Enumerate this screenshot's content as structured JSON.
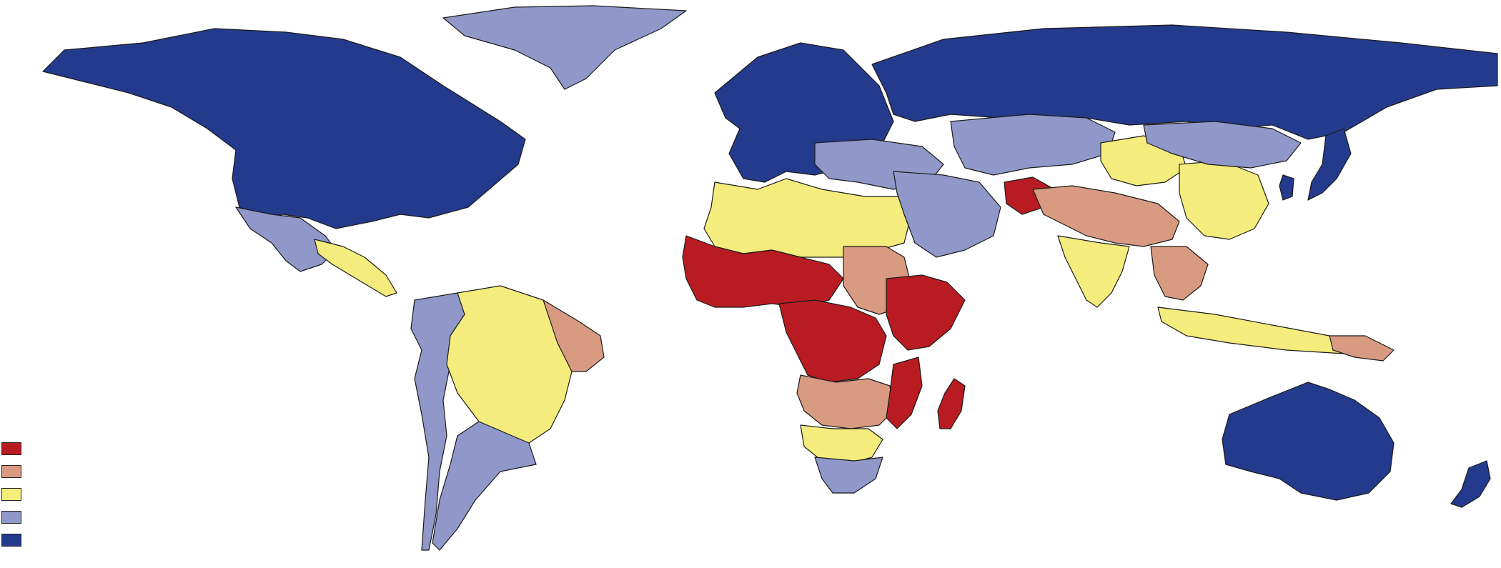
{
  "legend": {
    "classes": [
      {
        "key": "class-1",
        "color": "#b81c22",
        "label": ""
      },
      {
        "key": "class-2",
        "color": "#d99a82",
        "label": ""
      },
      {
        "key": "class-3",
        "color": "#f4ec7c",
        "label": ""
      },
      {
        "key": "class-4",
        "color": "#8f98c9",
        "label": ""
      },
      {
        "key": "class-5",
        "color": "#243a8c",
        "label": ""
      }
    ]
  },
  "colors": {
    "background": "#ffffff",
    "border": "#1a1a1a"
  },
  "regions": [
    {
      "name": "north-america",
      "class": 5
    },
    {
      "name": "greenland",
      "class": 4
    },
    {
      "name": "mexico",
      "class": 4
    },
    {
      "name": "central-america",
      "class": 3
    },
    {
      "name": "andean-south-america",
      "class": 4
    },
    {
      "name": "brazil",
      "class": 3
    },
    {
      "name": "northeast-brazil",
      "class": 2
    },
    {
      "name": "southern-cone",
      "class": 4
    },
    {
      "name": "europe",
      "class": 5
    },
    {
      "name": "russia",
      "class": 5
    },
    {
      "name": "eastern-europe-turkey",
      "class": 4
    },
    {
      "name": "north-africa",
      "class": 3
    },
    {
      "name": "sahel-west-africa",
      "class": 1
    },
    {
      "name": "sudan",
      "class": 2
    },
    {
      "name": "central-africa",
      "class": 1
    },
    {
      "name": "horn-of-africa",
      "class": 1
    },
    {
      "name": "southern-central-africa",
      "class": 2
    },
    {
      "name": "mozambique",
      "class": 1
    },
    {
      "name": "madagascar",
      "class": 1
    },
    {
      "name": "southern-africa",
      "class": 3
    },
    {
      "name": "south-africa",
      "class": 4
    },
    {
      "name": "middle-east",
      "class": 4
    },
    {
      "name": "central-asia",
      "class": 4
    },
    {
      "name": "afghanistan",
      "class": 1
    },
    {
      "name": "south-asia",
      "class": 2
    },
    {
      "name": "india",
      "class": 3
    },
    {
      "name": "china-west",
      "class": 3
    },
    {
      "name": "china-east",
      "class": 3
    },
    {
      "name": "mongolia-region",
      "class": 4
    },
    {
      "name": "southeast-asia",
      "class": 2
    },
    {
      "name": "indonesia",
      "class": 3
    },
    {
      "name": "papua-new-guinea",
      "class": 2
    },
    {
      "name": "japan",
      "class": 5
    },
    {
      "name": "korea",
      "class": 5
    },
    {
      "name": "australia",
      "class": 5
    },
    {
      "name": "new-zealand",
      "class": 5
    }
  ]
}
